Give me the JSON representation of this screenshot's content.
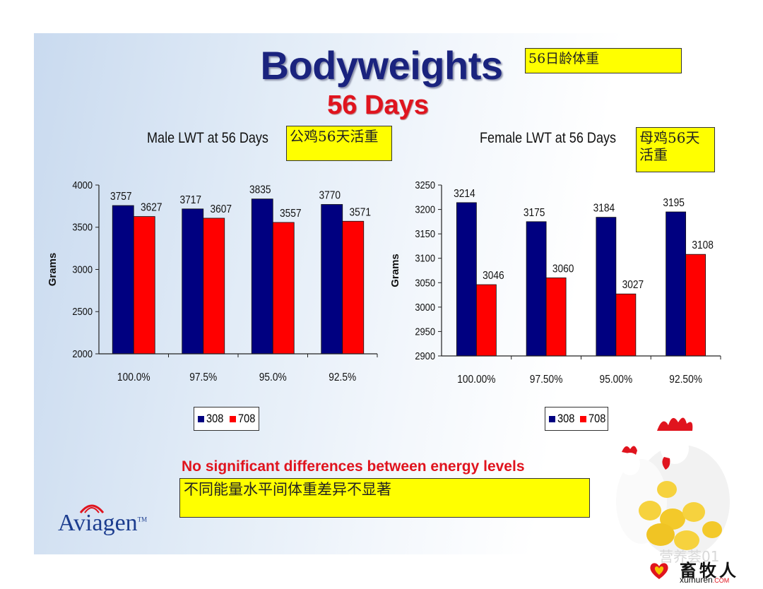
{
  "slide": {
    "title": "Bodyweights",
    "title_cn": "56日龄体重",
    "subtitle": "56 Days",
    "note_en": "No significant differences between energy levels",
    "note_cn": "不同能量水平间体重差异不显著",
    "logo": "Aviagen",
    "logo_tm": "TM",
    "watermark": "营养荟01",
    "site_cn": "畜牧人",
    "site_en": "xumuren",
    "site_tld": ".COM"
  },
  "colors": {
    "series_308": "#000080",
    "series_708": "#ff0000",
    "title": "#1a237e",
    "subtitle": "#e0141e",
    "highlight_box": "#ffff00"
  },
  "chart_data": [
    {
      "type": "bar",
      "title": "Male LWT at 56 Days",
      "title_cn": "公鸡56天活重",
      "categories": [
        "100.0%",
        "97.5%",
        "95.0%",
        "92.5%"
      ],
      "series": [
        {
          "name": "308",
          "values": [
            3757,
            3717,
            3835,
            3770
          ]
        },
        {
          "name": "708",
          "values": [
            3627,
            3607,
            3557,
            3571
          ]
        }
      ],
      "xlabel": "",
      "ylabel": "Grams",
      "ylim": [
        2000,
        4000
      ],
      "yticks": [
        "2000",
        "2500",
        "3000",
        "3500",
        "4000"
      ],
      "grid": false,
      "legend_position": "bottom"
    },
    {
      "type": "bar",
      "title": "Female LWT at 56 Days",
      "title_cn": "母鸡56天活重",
      "categories": [
        "100.00%",
        "97.50%",
        "95.00%",
        "92.50%"
      ],
      "series": [
        {
          "name": "308",
          "values": [
            3214,
            3175,
            3184,
            3195
          ]
        },
        {
          "name": "708",
          "values": [
            3046,
            3060,
            3027,
            3108
          ]
        }
      ],
      "xlabel": "",
      "ylabel": "Grams",
      "ylim": [
        2900,
        3250
      ],
      "yticks": [
        "2900",
        "2950",
        "3000",
        "3050",
        "3100",
        "3150",
        "3200",
        "3250"
      ],
      "grid": false,
      "legend_position": "bottom"
    }
  ]
}
